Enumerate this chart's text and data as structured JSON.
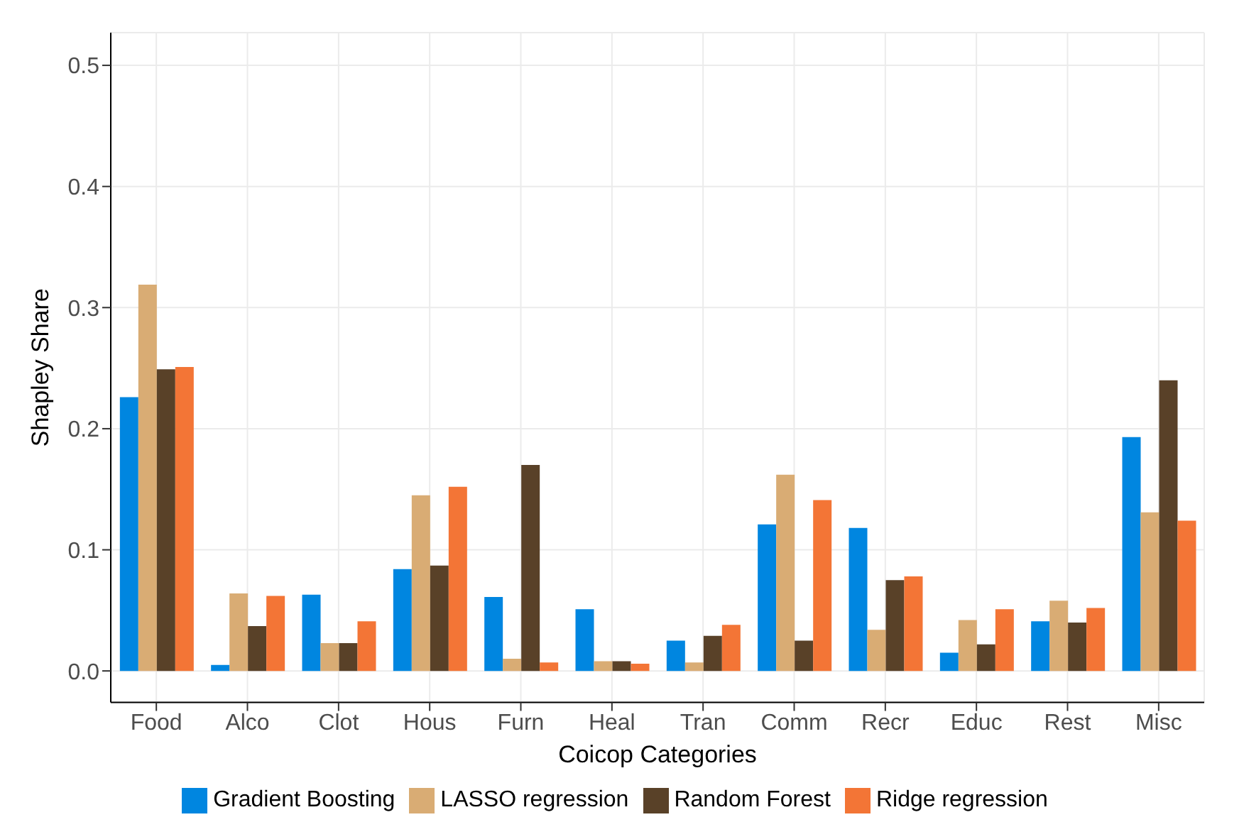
{
  "chart_data": {
    "type": "bar",
    "xlabel": "Coicop Categories",
    "ylabel": "Shapley Share",
    "categories": [
      "Food",
      "Alco",
      "Clot",
      "Hous",
      "Furn",
      "Heal",
      "Tran",
      "Comm",
      "Recr",
      "Educ",
      "Rest",
      "Misc"
    ],
    "series": [
      {
        "name": "Gradient Boosting",
        "color": "#0086e0",
        "values": [
          0.226,
          0.005,
          0.063,
          0.084,
          0.061,
          0.051,
          0.025,
          0.121,
          0.118,
          0.015,
          0.041,
          0.193
        ]
      },
      {
        "name": "LASSO regression",
        "color": "#d9ac74",
        "values": [
          0.319,
          0.064,
          0.023,
          0.145,
          0.01,
          0.008,
          0.007,
          0.162,
          0.034,
          0.042,
          0.058,
          0.131
        ]
      },
      {
        "name": "Random Forest",
        "color": "#594128",
        "values": [
          0.249,
          0.037,
          0.023,
          0.087,
          0.17,
          0.008,
          0.029,
          0.025,
          0.075,
          0.022,
          0.04,
          0.24
        ]
      },
      {
        "name": "Ridge regression",
        "color": "#f37536",
        "values": [
          0.251,
          0.062,
          0.041,
          0.152,
          0.007,
          0.006,
          0.038,
          0.141,
          0.078,
          0.051,
          0.052,
          0.124
        ]
      }
    ],
    "ylim": [
      -0.026,
      0.527
    ],
    "yticks": [
      {
        "value": 0,
        "label": "0.0"
      },
      0.1,
      0.2,
      0.3,
      0.4,
      0.5
    ],
    "grid": true,
    "legend": "bottom"
  }
}
